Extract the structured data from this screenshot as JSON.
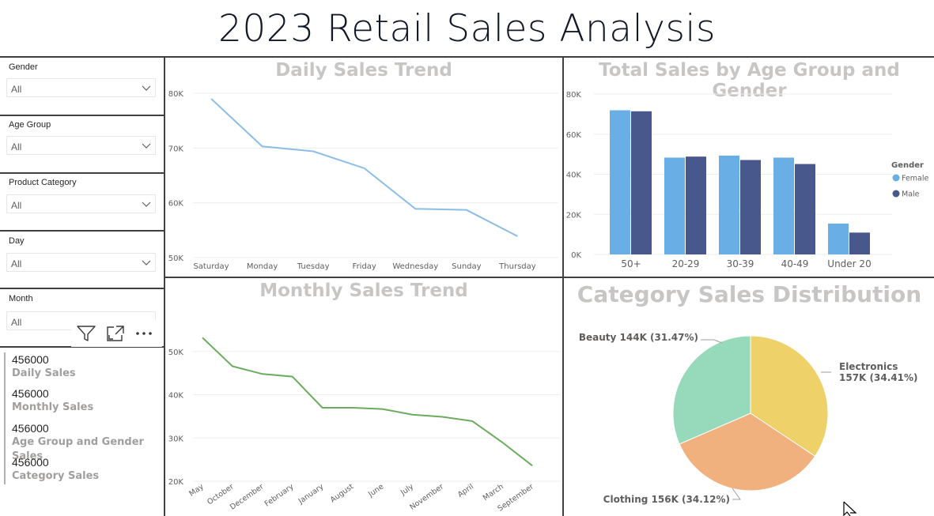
{
  "page_title": "2023 Retail Sales Analysis",
  "slicers": [
    {
      "label": "Gender",
      "value": "All"
    },
    {
      "label": "Age Group",
      "value": "All"
    },
    {
      "label": "Product Category",
      "value": "All"
    },
    {
      "label": "Day",
      "value": "All"
    },
    {
      "label": "Month",
      "value": "All"
    }
  ],
  "toolbar": {
    "icons": [
      "filter-icon",
      "focus-mode-icon",
      "more-options-icon"
    ]
  },
  "cards": [
    {
      "value": "456000",
      "label": "Daily Sales"
    },
    {
      "value": "456000",
      "label": "Monthly Sales"
    },
    {
      "value": "456000",
      "label": "Age Group and Gender Sales"
    },
    {
      "value": "456000",
      "label": "Category Sales"
    }
  ],
  "colors": {
    "border": "#3f3f3f",
    "daily_line": "#8cbde6",
    "monthly_line": "#6aab5e",
    "female": "#6aaee6",
    "male": "#48578c",
    "pie_electronics": "#efd16a",
    "pie_clothing": "#f1b17f",
    "pie_beauty": "#96d9bb",
    "title_gray": "#c8c6c4"
  },
  "chart_data": [
    {
      "type": "line",
      "title": "Daily Sales Trend",
      "categories": [
        "Saturday",
        "Monday",
        "Tuesday",
        "Friday",
        "Wednesday",
        "Sunday",
        "Thursday"
      ],
      "values": [
        79000,
        70300,
        69400,
        66300,
        58900,
        58700,
        53900
      ],
      "ylim": [
        50000,
        80000
      ],
      "yticks": [
        50000,
        60000,
        70000,
        80000
      ],
      "ytick_labels": [
        "50K",
        "60K",
        "70K",
        "80K"
      ],
      "grid": true
    },
    {
      "type": "bar",
      "title": "Total Sales by Age Group and Gender",
      "categories": [
        "50+",
        "20-29",
        "30-39",
        "40-49",
        "Under 20"
      ],
      "series": [
        {
          "name": "Female",
          "values": [
            71900,
            48300,
            49300,
            48300,
            15400
          ]
        },
        {
          "name": "Male",
          "values": [
            71400,
            48800,
            47100,
            45100,
            10900
          ]
        }
      ],
      "legend_title": "Gender",
      "legend_position": "right",
      "ylim": [
        0,
        80000
      ],
      "yticks": [
        0,
        20000,
        40000,
        60000,
        80000
      ],
      "ytick_labels": [
        "0K",
        "20K",
        "40K",
        "60K",
        "80K"
      ],
      "grid": true
    },
    {
      "type": "line",
      "title": "Monthly Sales Trend",
      "categories": [
        "May",
        "October",
        "December",
        "February",
        "January",
        "August",
        "June",
        "July",
        "November",
        "April",
        "March",
        "September"
      ],
      "values": [
        53200,
        46600,
        44800,
        44200,
        37000,
        37000,
        36700,
        35400,
        34900,
        33900,
        29000,
        23600
      ],
      "ylim": [
        20000,
        56000
      ],
      "yticks": [
        20000,
        30000,
        40000,
        50000
      ],
      "ytick_labels": [
        "20K",
        "30K",
        "40K",
        "50K"
      ],
      "grid": true
    },
    {
      "type": "pie",
      "title": "Category Sales Distribution",
      "slices": [
        {
          "name": "Electronics",
          "value": 157000,
          "percent": 34.41,
          "label_line1": "Electronics",
          "label_line2": "157K (34.41%)"
        },
        {
          "name": "Clothing",
          "value": 156000,
          "percent": 34.12,
          "label": "Clothing 156K (34.12%)"
        },
        {
          "name": "Beauty",
          "value": 144000,
          "percent": 31.47,
          "label": "Beauty 144K (31.47%)"
        }
      ]
    }
  ]
}
